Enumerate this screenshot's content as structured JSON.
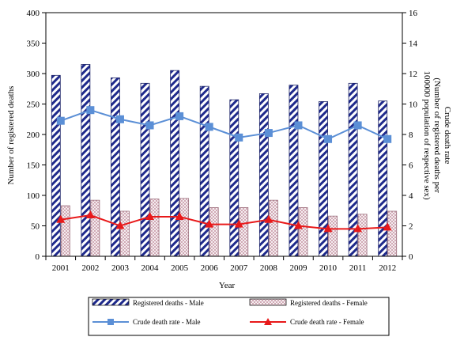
{
  "chart_data": {
    "type": "bar",
    "categories": [
      "2001",
      "2002",
      "2003",
      "2004",
      "2005",
      "2006",
      "2007",
      "2008",
      "2009",
      "2010",
      "2011",
      "2012"
    ],
    "xlabel": "Year",
    "ylabel": "Number of registered deaths",
    "y2label_line1": "Crude death rate",
    "y2label_line2": "(Number of registered deaths per",
    "y2label_line3": "100000 population of respective sex)",
    "ylim": [
      0,
      400
    ],
    "y2lim": [
      0,
      16
    ],
    "yticks": [
      "0",
      "50",
      "100",
      "150",
      "200",
      "250",
      "300",
      "350",
      "400"
    ],
    "y2ticks": [
      "0",
      "2",
      "4",
      "6",
      "8",
      "10",
      "12",
      "14",
      "16"
    ],
    "grid": false,
    "legend_position": "bottom",
    "series": [
      {
        "name": "Registered deaths - Male",
        "kind": "bar",
        "axis": "left",
        "pattern": "diagonal-stripes",
        "color": "#1f2a8c",
        "values": [
          297,
          315,
          293,
          284,
          305,
          279,
          257,
          267,
          281,
          254,
          284,
          255
        ]
      },
      {
        "name": "Registered deaths - Female",
        "kind": "bar",
        "axis": "left",
        "pattern": "crosshatch",
        "color": "#c89aa8",
        "values": [
          83,
          92,
          74,
          94,
          95,
          80,
          80,
          92,
          80,
          66,
          69,
          74
        ]
      },
      {
        "name": "Crude death rate - Male",
        "kind": "line",
        "axis": "right",
        "marker": "square",
        "color": "#5b8fd6",
        "values": [
          8.9,
          9.6,
          9.0,
          8.6,
          9.2,
          8.5,
          7.8,
          8.1,
          8.6,
          7.7,
          8.6,
          7.7
        ]
      },
      {
        "name": "Crude death rate - Female",
        "kind": "line",
        "axis": "right",
        "marker": "triangle",
        "color": "#e8191a",
        "values": [
          2.4,
          2.7,
          2.0,
          2.6,
          2.6,
          2.1,
          2.1,
          2.4,
          2.0,
          1.8,
          1.8,
          1.9
        ]
      }
    ]
  }
}
